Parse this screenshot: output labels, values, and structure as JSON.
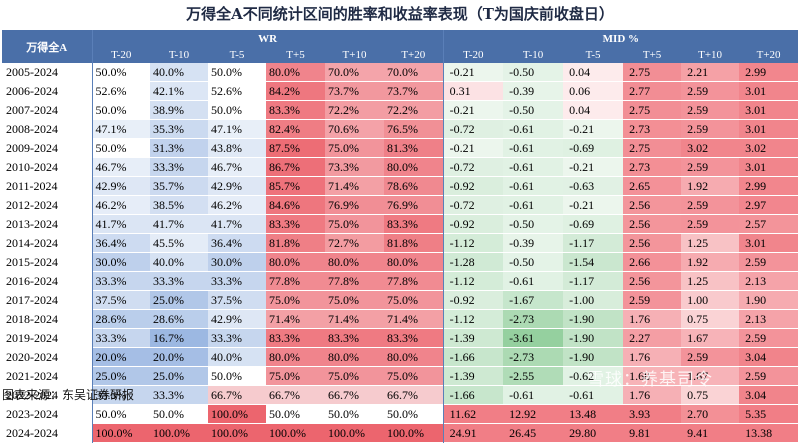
{
  "title": "万得全A不同统计区间的胜率和收益率表现（T为国庆前收盘日）",
  "corner_label": "万得全A",
  "groups": {
    "wr": "WR",
    "mid": "MID %"
  },
  "columns": [
    "T-20",
    "T-10",
    "T-5",
    "T+5",
    "T+10",
    "T+20"
  ],
  "rows": [
    {
      "year": "2005-2024",
      "wr": [
        "50.0%",
        "40.0%",
        "50.0%",
        "80.0%",
        "70.0%",
        "70.0%"
      ],
      "mid": [
        "-0.21",
        "-0.50",
        "0.04",
        "2.75",
        "2.21",
        "2.99"
      ]
    },
    {
      "year": "2006-2024",
      "wr": [
        "52.6%",
        "42.1%",
        "52.6%",
        "84.2%",
        "73.7%",
        "73.7%"
      ],
      "mid": [
        "0.31",
        "-0.39",
        "0.06",
        "2.77",
        "2.59",
        "3.01"
      ]
    },
    {
      "year": "2007-2024",
      "wr": [
        "50.0%",
        "38.9%",
        "50.0%",
        "83.3%",
        "72.2%",
        "72.2%"
      ],
      "mid": [
        "-0.21",
        "-0.50",
        "0.04",
        "2.75",
        "2.59",
        "3.01"
      ]
    },
    {
      "year": "2008-2024",
      "wr": [
        "47.1%",
        "35.3%",
        "47.1%",
        "82.4%",
        "70.6%",
        "76.5%"
      ],
      "mid": [
        "-0.72",
        "-0.61",
        "-0.21",
        "2.73",
        "2.59",
        "3.01"
      ]
    },
    {
      "year": "2009-2024",
      "wr": [
        "50.0%",
        "31.3%",
        "43.8%",
        "87.5%",
        "75.0%",
        "81.3%"
      ],
      "mid": [
        "-0.21",
        "-0.61",
        "-0.69",
        "2.75",
        "3.02",
        "3.02"
      ]
    },
    {
      "year": "2010-2024",
      "wr": [
        "46.7%",
        "33.3%",
        "46.7%",
        "86.7%",
        "73.3%",
        "80.0%"
      ],
      "mid": [
        "-0.72",
        "-0.61",
        "-0.21",
        "2.73",
        "2.59",
        "3.01"
      ]
    },
    {
      "year": "2011-2024",
      "wr": [
        "42.9%",
        "35.7%",
        "42.9%",
        "85.7%",
        "71.4%",
        "78.6%"
      ],
      "mid": [
        "-0.92",
        "-0.61",
        "-0.63",
        "2.65",
        "1.92",
        "2.99"
      ]
    },
    {
      "year": "2012-2024",
      "wr": [
        "46.2%",
        "38.5%",
        "46.2%",
        "84.6%",
        "76.9%",
        "76.9%"
      ],
      "mid": [
        "-0.72",
        "-0.61",
        "-0.21",
        "2.56",
        "2.59",
        "2.97"
      ]
    },
    {
      "year": "2013-2024",
      "wr": [
        "41.7%",
        "41.7%",
        "41.7%",
        "83.3%",
        "75.0%",
        "83.3%"
      ],
      "mid": [
        "-0.92",
        "-0.50",
        "-0.69",
        "2.56",
        "2.59",
        "2.57"
      ]
    },
    {
      "year": "2014-2024",
      "wr": [
        "36.4%",
        "45.5%",
        "36.4%",
        "81.8%",
        "72.7%",
        "81.8%"
      ],
      "mid": [
        "-1.12",
        "-0.39",
        "-1.17",
        "2.56",
        "1.25",
        "3.01"
      ]
    },
    {
      "year": "2015-2024",
      "wr": [
        "30.0%",
        "40.0%",
        "30.0%",
        "80.0%",
        "80.0%",
        "80.0%"
      ],
      "mid": [
        "-1.28",
        "-0.50",
        "-1.54",
        "2.66",
        "1.92",
        "2.59"
      ]
    },
    {
      "year": "2016-2024",
      "wr": [
        "33.3%",
        "33.3%",
        "33.3%",
        "77.8%",
        "77.8%",
        "77.8%"
      ],
      "mid": [
        "-1.12",
        "-0.61",
        "-1.17",
        "2.56",
        "1.25",
        "2.13"
      ]
    },
    {
      "year": "2017-2024",
      "wr": [
        "37.5%",
        "25.0%",
        "37.5%",
        "75.0%",
        "75.0%",
        "75.0%"
      ],
      "mid": [
        "-0.92",
        "-1.67",
        "-1.00",
        "2.59",
        "1.00",
        "1.90"
      ]
    },
    {
      "year": "2018-2024",
      "wr": [
        "28.6%",
        "28.6%",
        "42.9%",
        "71.4%",
        "71.4%",
        "71.4%"
      ],
      "mid": [
        "-1.12",
        "-2.73",
        "-1.90",
        "1.76",
        "0.75",
        "2.13"
      ]
    },
    {
      "year": "2019-2024",
      "wr": [
        "33.3%",
        "16.7%",
        "33.3%",
        "83.3%",
        "83.3%",
        "83.3%"
      ],
      "mid": [
        "-1.39",
        "-3.61",
        "-1.90",
        "2.27",
        "1.67",
        "2.59"
      ]
    },
    {
      "year": "2020-2024",
      "wr": [
        "20.0%",
        "20.0%",
        "40.0%",
        "80.0%",
        "80.0%",
        "80.0%"
      ],
      "mid": [
        "-1.66",
        "-2.73",
        "-1.90",
        "1.76",
        "2.59",
        "3.04"
      ]
    },
    {
      "year": "2021-2024",
      "wr": [
        "25.0%",
        "25.0%",
        "50.0%",
        "75.0%",
        "75.0%",
        "75.0%"
      ],
      "mid": [
        "-1.39",
        "-2.55",
        "-0.62",
        "1.68",
        "1.67",
        "2.59"
      ]
    },
    {
      "year": "2022-2024",
      "wr": [
        "33.3%",
        "33.3%",
        "66.7%",
        "66.7%",
        "66.7%",
        "66.7%"
      ],
      "mid": [
        "-1.66",
        "-0.61",
        "-0.61",
        "1.76",
        "0.75",
        "3.04"
      ]
    },
    {
      "year": "2023-2024",
      "wr": [
        "50.0%",
        "50.0%",
        "100.0%",
        "50.0%",
        "50.0%",
        "50.0%"
      ],
      "mid": [
        "11.62",
        "12.92",
        "13.48",
        "3.93",
        "2.70",
        "5.35"
      ]
    },
    {
      "year": "2024-2024",
      "wr": [
        "100.0%",
        "100.0%",
        "100.0%",
        "100.0%",
        "100.0%",
        "100.0%"
      ],
      "mid": [
        "24.91",
        "26.45",
        "29.80",
        "9.81",
        "9.41",
        "13.38"
      ]
    }
  ],
  "source": "图表来源：东吴证券研报",
  "watermark": "雪球：养基司令",
  "colors": {
    "header": "#4a6fa8",
    "blue_base": "#5b84c4",
    "red_base": "#f0606a",
    "green_base": "#4aa85a"
  }
}
